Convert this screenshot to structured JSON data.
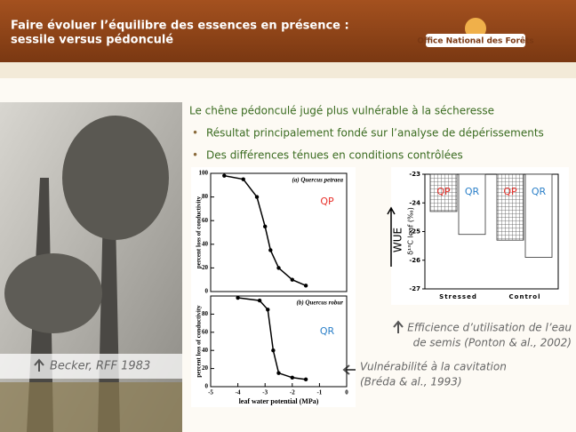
{
  "header": {
    "title": [
      "Faire évoluer l’équilibre des essences en présence :",
      "sessile versus pédonculé"
    ],
    "logo": "Office National des Forêts"
  },
  "content": {
    "heading": "Le chêne pédonculé jugé plus vulnérable à la sécheresse",
    "bullets": [
      "Résultat principalement fondé sur l’analyse de dépérissements",
      "Des différences ténues en conditions contrôlées"
    ]
  },
  "photo_caption": "Becker, RFF 1983",
  "captions": {
    "wue": [
      "Efficience d’utilisation de l’eau",
      "de semis (Ponton & al., 2002)"
    ],
    "cavitation": [
      "Vulnérabilité à la cavitation",
      "(Bréda & al., 1993)"
    ]
  },
  "chart_data": [
    {
      "type": "line",
      "panel_label": "(a) Quercus petraea",
      "annotation": "QP",
      "ylabel": "percent loss of conductivity",
      "x": [
        -4.5,
        -3.8,
        -3.3,
        -3.0,
        -2.8,
        -2.5,
        -2.0,
        -1.5
      ],
      "values": [
        98,
        95,
        80,
        55,
        35,
        20,
        10,
        5
      ],
      "color": "#000000",
      "xlim": [
        -5,
        0
      ],
      "ylim": [
        0,
        100
      ],
      "yticks": [
        0,
        20,
        40,
        60,
        80,
        100
      ]
    },
    {
      "type": "line",
      "panel_label": "(b) Quercus robur",
      "annotation": "QR",
      "ylabel": "percent loss of conductivity",
      "xlabel": "leaf water potential (MPa)",
      "x": [
        -4.0,
        -3.2,
        -2.9,
        -2.7,
        -2.5,
        -2.0,
        -1.5
      ],
      "values": [
        98,
        95,
        85,
        40,
        15,
        10,
        8
      ],
      "color": "#000000",
      "xlim": [
        -5,
        0
      ],
      "xticks": [
        -5,
        -4,
        -3,
        -2,
        -1,
        0
      ],
      "ylim": [
        0,
        100
      ],
      "yticks": [
        0,
        20,
        40,
        60,
        80
      ]
    },
    {
      "type": "bar",
      "ylabel": "δ¹³C leaf (‰)",
      "axis_note": "WUE",
      "categories": [
        "Stressed",
        "Control"
      ],
      "series": [
        {
          "name": "QP",
          "color": "#e8302a",
          "values": [
            -24.3,
            -25.3
          ]
        },
        {
          "name": "QR",
          "color": "#2a7fc8",
          "values": [
            -25.1,
            -25.9
          ]
        }
      ],
      "ylim": [
        -27,
        -23
      ],
      "yticks": [
        -23,
        -24,
        -25,
        -26,
        -27
      ]
    }
  ]
}
